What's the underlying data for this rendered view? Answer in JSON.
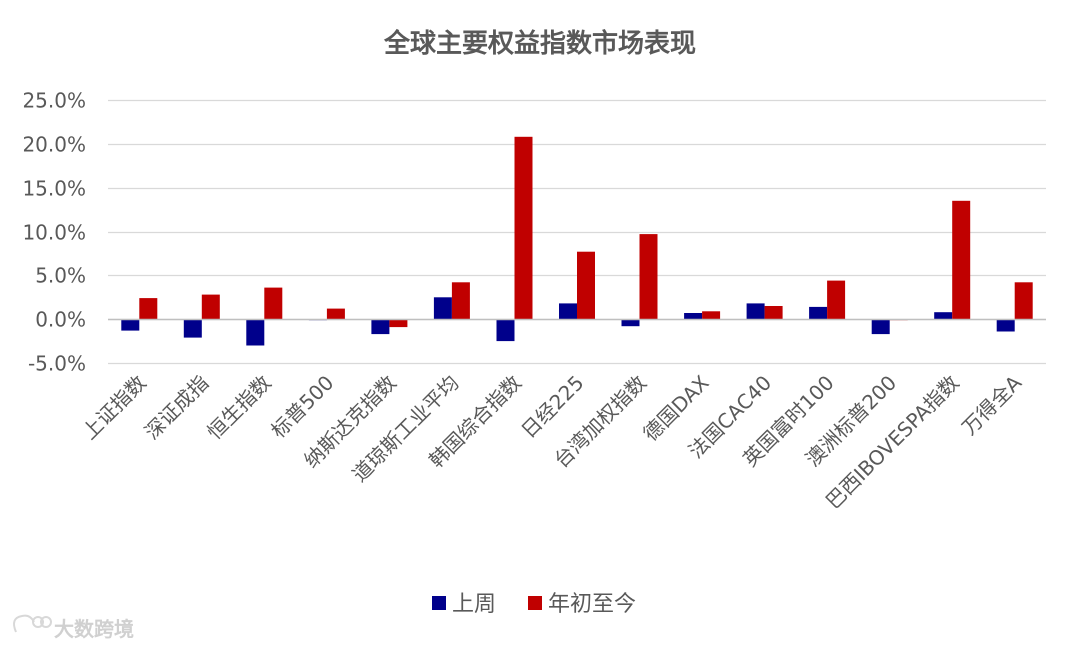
{
  "chart_data": {
    "type": "bar",
    "title": "全球主要权益指数市场表现",
    "categories": [
      "上证指数",
      "深证成指",
      "恒生指数",
      "标普500",
      "纳斯达克指数",
      "道琼斯工业平均",
      "韩国综合指数",
      "日经225",
      "台湾加权指数",
      "德国DAX",
      "法国CAC40",
      "英国富时100",
      "澳洲标普200",
      "巴西IBOVESPA指数",
      "万得全A"
    ],
    "series": [
      {
        "name": "上周",
        "color": "#00008B",
        "values": [
          -1.3,
          -2.1,
          -3.0,
          -0.1,
          -1.7,
          2.5,
          -2.5,
          1.8,
          -0.8,
          0.7,
          1.8,
          1.4,
          -1.7,
          0.8,
          -1.4
        ]
      },
      {
        "name": "年初至今",
        "color": "#C00000",
        "values": [
          2.4,
          2.8,
          3.6,
          1.2,
          -0.9,
          4.2,
          20.8,
          7.7,
          9.7,
          0.9,
          1.5,
          4.4,
          -0.1,
          13.5,
          4.2
        ]
      }
    ],
    "ylim": [
      -5,
      25
    ],
    "yticks": [
      -5,
      0,
      5,
      10,
      15,
      20,
      25
    ],
    "ytick_labels": [
      "-5.0%",
      "0.0%",
      "5.0%",
      "10.0%",
      "15.0%",
      "20.0%",
      "25.0%"
    ],
    "xlabel": "",
    "ylabel": "",
    "grid": true,
    "legend": "bottom"
  },
  "watermark": {
    "text": "大数跨境"
  }
}
